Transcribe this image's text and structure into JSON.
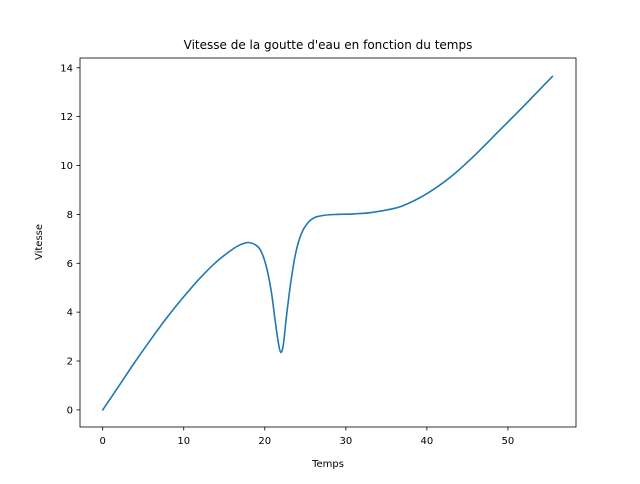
{
  "chart_data": {
    "type": "line",
    "title": "Vitesse de la goutte d'eau en fonction du temps",
    "xlabel": "Temps",
    "ylabel": "Vitesse",
    "xlim": [
      -2.8,
      58.4
    ],
    "ylim": [
      -0.7,
      14.4
    ],
    "xticks": [
      0,
      10,
      20,
      30,
      40,
      50
    ],
    "yticks": [
      0,
      2,
      4,
      6,
      8,
      10,
      12,
      14
    ],
    "grid": false,
    "legend": "none",
    "series": [
      {
        "color": "#1f77b4",
        "x": [
          0,
          2,
          4,
          6,
          8,
          10,
          12,
          14,
          16,
          17,
          18,
          19,
          19.6,
          20.2,
          20.8,
          21.3,
          21.7,
          22.0,
          22.3,
          22.7,
          23.2,
          23.8,
          24.5,
          25.3,
          26.2,
          27.5,
          29,
          31,
          33,
          35,
          37,
          40,
          43,
          46,
          49,
          52,
          55.5
        ],
        "y": [
          0,
          0.98,
          1.97,
          2.91,
          3.81,
          4.63,
          5.39,
          6.05,
          6.57,
          6.76,
          6.85,
          6.72,
          6.45,
          5.85,
          4.85,
          3.6,
          2.7,
          2.35,
          2.7,
          3.9,
          5.2,
          6.4,
          7.2,
          7.65,
          7.88,
          7.97,
          8.0,
          8.02,
          8.07,
          8.18,
          8.35,
          8.85,
          9.55,
          10.45,
          11.45,
          12.45,
          13.65
        ]
      }
    ]
  }
}
